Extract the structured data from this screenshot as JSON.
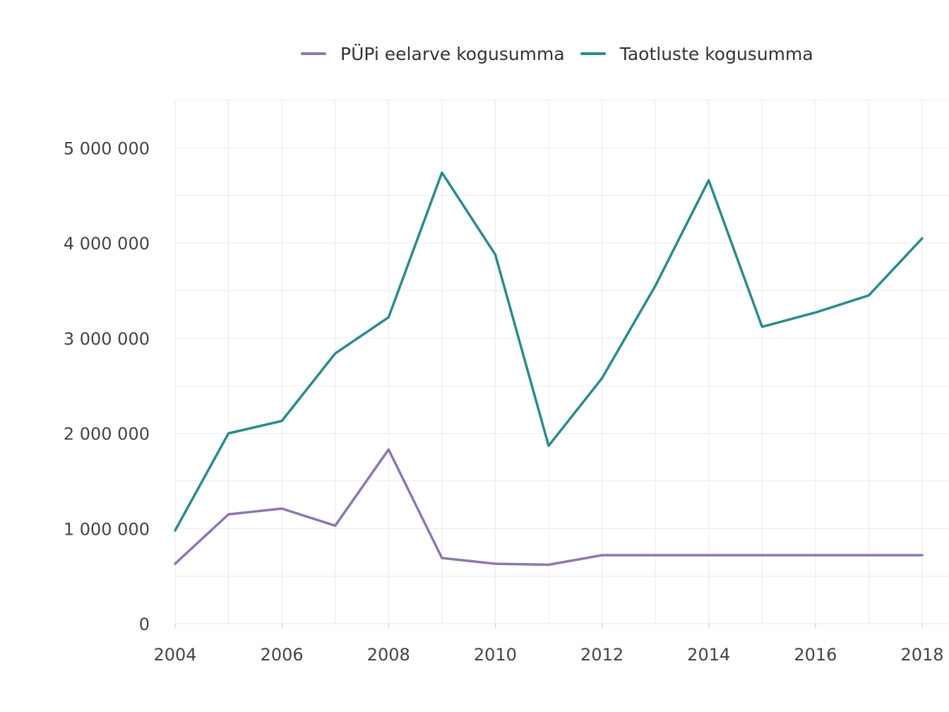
{
  "chart_data": {
    "type": "line",
    "title": "",
    "xlabel": "",
    "ylabel": "",
    "x": [
      2004,
      2005,
      2006,
      2007,
      2008,
      2009,
      2010,
      2011,
      2012,
      2013,
      2014,
      2015,
      2016,
      2017,
      2018
    ],
    "x_ticks": [
      2004,
      2006,
      2008,
      2010,
      2012,
      2014,
      2016,
      2018
    ],
    "x_tick_labels": [
      "2004",
      "2006",
      "2008",
      "2010",
      "2012",
      "2014",
      "2016",
      "2018"
    ],
    "y_ticks": [
      0,
      1000000,
      2000000,
      3000000,
      4000000,
      5000000
    ],
    "y_tick_labels": [
      "0",
      "1 000 000",
      "2 000 000",
      "3 000 000",
      "4 000 000",
      "5 000 000"
    ],
    "xlim": [
      2004,
      2018.5
    ],
    "ylim": [
      0,
      5500000
    ],
    "grid": true,
    "legend_position": "top",
    "series": [
      {
        "name": "PÜPi eelarve kogusumma",
        "color": "#8e76b0",
        "values": [
          630000,
          1150000,
          1210000,
          1030000,
          1830000,
          690000,
          630000,
          620000,
          720000,
          720000,
          720000,
          720000,
          720000,
          720000,
          720000
        ]
      },
      {
        "name": "Taotluste kogusumma",
        "color": "#2c8a8a",
        "values": [
          980000,
          2000000,
          2130000,
          2840000,
          3220000,
          4740000,
          3880000,
          1870000,
          2580000,
          3550000,
          4660000,
          3120000,
          3270000,
          3450000,
          4050000
        ]
      }
    ]
  }
}
